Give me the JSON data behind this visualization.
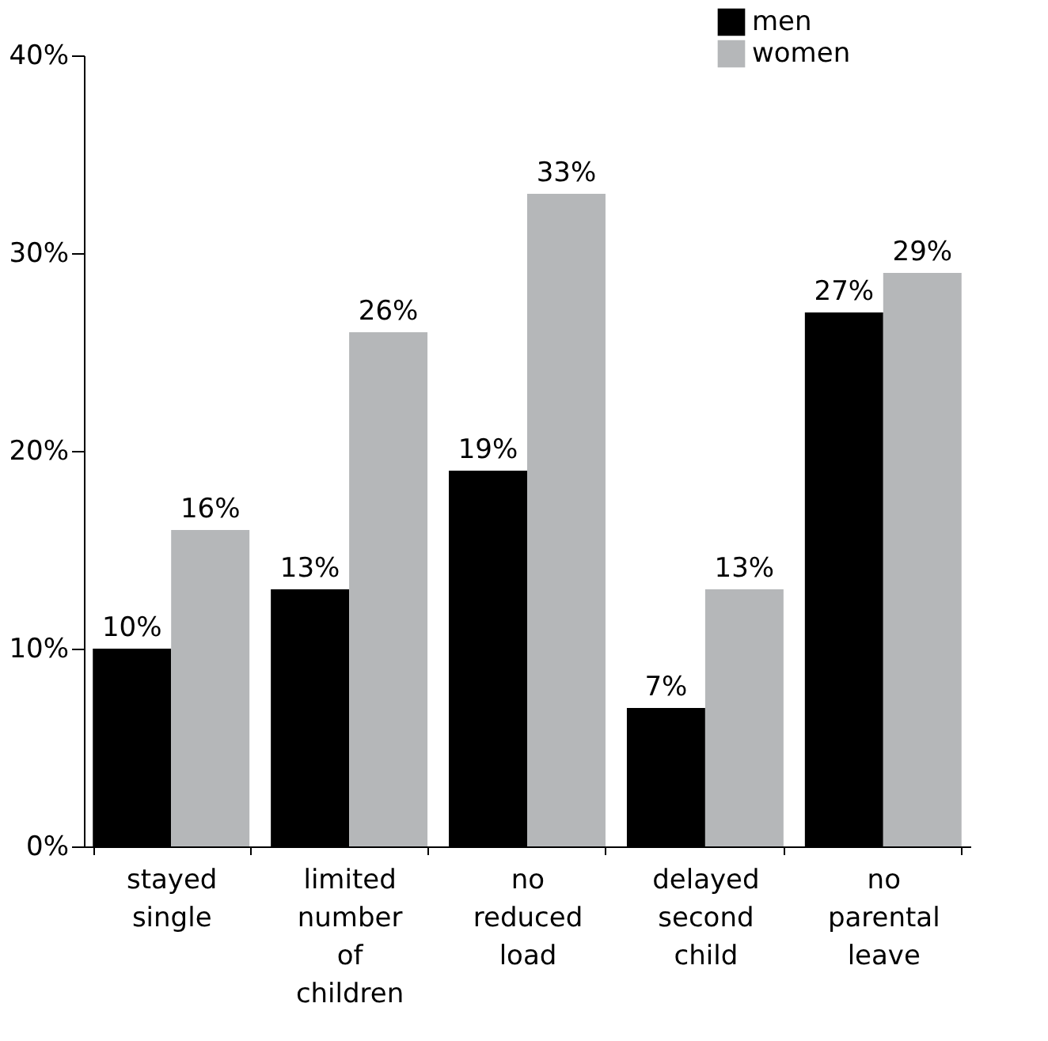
{
  "chart_data": {
    "type": "bar",
    "categories": [
      "stayed single",
      "limited number of children",
      "no reduced load",
      "delayed second child",
      "no parental leave"
    ],
    "series": [
      {
        "name": "men",
        "color": "#000000",
        "values": [
          10,
          13,
          19,
          7,
          27
        ],
        "value_labels": [
          "10%",
          "13%",
          "19%",
          "7%",
          "27%"
        ]
      },
      {
        "name": "women",
        "color": "#b5b7b9",
        "values": [
          16,
          26,
          33,
          13,
          29
        ],
        "value_labels": [
          "16%",
          "26%",
          "33%",
          "13%",
          "29%"
        ]
      }
    ],
    "ylim": [
      0,
      40
    ],
    "yticks": [
      {
        "value": 0,
        "label": "0%"
      },
      {
        "value": 10,
        "label": "10%"
      },
      {
        "value": 20,
        "label": "20%"
      },
      {
        "value": 30,
        "label": "30%"
      },
      {
        "value": 40,
        "label": "40%"
      }
    ],
    "grid": false,
    "legend": "top right"
  }
}
